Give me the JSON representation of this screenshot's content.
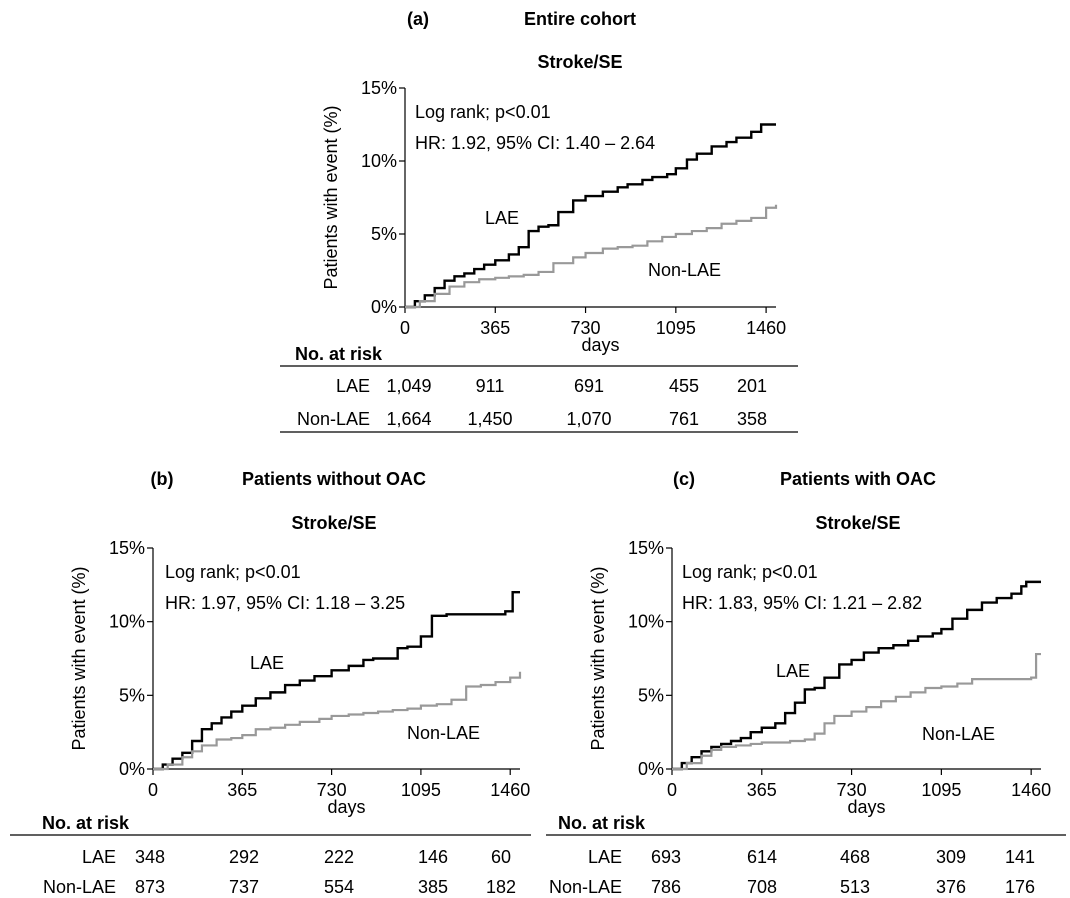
{
  "chart_data": [
    {
      "panel_label": "(a)",
      "group_title": "Entire cohort",
      "type": "line",
      "subtitle": "Stroke/SE",
      "xlabel": "days",
      "ylabel": "Patients with event (%)",
      "xlim": [
        0,
        1500
      ],
      "ylim": [
        0,
        15
      ],
      "xticks": [
        0,
        365,
        730,
        1095,
        1460
      ],
      "yticks": [
        0,
        5,
        10,
        15
      ],
      "ytick_labels": [
        "0%",
        "5%",
        "10%",
        "15%"
      ],
      "grid": false,
      "annotations": [
        "Log rank; p<0.01",
        "HR: 1.92, 95% CI: 1.40 – 2.64"
      ],
      "series": [
        {
          "name": "LAE",
          "color": "#000000",
          "x": [
            0,
            40,
            80,
            120,
            160,
            200,
            240,
            280,
            320,
            365,
            420,
            460,
            500,
            540,
            580,
            620,
            680,
            730,
            800,
            860,
            900,
            960,
            1000,
            1060,
            1095,
            1140,
            1180,
            1240,
            1300,
            1340,
            1400,
            1440,
            1500
          ],
          "y": [
            0,
            0.4,
            0.8,
            1.3,
            1.8,
            2.1,
            2.3,
            2.6,
            2.9,
            3.2,
            3.6,
            4.1,
            5.2,
            5.5,
            5.6,
            6.5,
            7.3,
            7.6,
            7.9,
            8.2,
            8.4,
            8.7,
            8.9,
            9.1,
            9.5,
            10.1,
            10.5,
            11.0,
            11.3,
            11.6,
            12.0,
            12.5,
            12.5
          ]
        },
        {
          "name": "Non-LAE",
          "color": "#999999",
          "x": [
            0,
            60,
            120,
            180,
            240,
            300,
            365,
            420,
            480,
            540,
            600,
            680,
            730,
            800,
            860,
            920,
            980,
            1040,
            1095,
            1160,
            1220,
            1280,
            1340,
            1400,
            1460,
            1500
          ],
          "y": [
            0,
            0.4,
            0.9,
            1.4,
            1.7,
            1.9,
            2.0,
            2.1,
            2.2,
            2.4,
            3.0,
            3.4,
            3.7,
            4.0,
            4.1,
            4.2,
            4.5,
            4.8,
            5.0,
            5.2,
            5.4,
            5.7,
            5.9,
            6.1,
            6.8,
            7.0
          ]
        }
      ],
      "risk_table": {
        "title": "No. at risk",
        "rows": [
          {
            "label": "LAE",
            "values": [
              "1,049",
              "911",
              "691",
              "455",
              "201"
            ]
          },
          {
            "label": "Non-LAE",
            "values": [
              "1,664",
              "1,450",
              "1,070",
              "761",
              "358"
            ]
          }
        ]
      }
    },
    {
      "panel_label": "(b)",
      "group_title": "Patients without OAC",
      "type": "line",
      "subtitle": "Stroke/SE",
      "xlabel": "days",
      "ylabel": "Patients with event (%)",
      "xlim": [
        0,
        1500
      ],
      "ylim": [
        0,
        15
      ],
      "xticks": [
        0,
        365,
        730,
        1095,
        1460
      ],
      "yticks": [
        0,
        5,
        10,
        15
      ],
      "ytick_labels": [
        "0%",
        "5%",
        "10%",
        "15%"
      ],
      "grid": false,
      "annotations": [
        "Log rank; p<0.01",
        "HR: 1.97, 95% CI: 1.18 – 3.25"
      ],
      "series": [
        {
          "name": "LAE",
          "color": "#000000",
          "x": [
            0,
            40,
            80,
            120,
            160,
            200,
            240,
            280,
            320,
            365,
            420,
            480,
            540,
            600,
            660,
            730,
            800,
            860,
            900,
            960,
            1000,
            1040,
            1095,
            1140,
            1200,
            1260,
            1320,
            1380,
            1440,
            1470,
            1500
          ],
          "y": [
            0,
            0.3,
            0.7,
            1.1,
            1.9,
            2.7,
            3.1,
            3.5,
            3.9,
            4.3,
            4.8,
            5.2,
            5.7,
            6.0,
            6.3,
            6.7,
            7.0,
            7.4,
            7.5,
            7.5,
            8.2,
            8.3,
            9.0,
            10.4,
            10.5,
            10.5,
            10.5,
            10.5,
            10.7,
            12.0,
            12.0
          ]
        },
        {
          "name": "Non-LAE",
          "color": "#999999",
          "x": [
            0,
            60,
            120,
            160,
            200,
            260,
            320,
            365,
            420,
            480,
            540,
            600,
            680,
            730,
            800,
            860,
            920,
            980,
            1040,
            1095,
            1160,
            1220,
            1280,
            1340,
            1400,
            1460,
            1500
          ],
          "y": [
            0,
            0.3,
            0.8,
            1.2,
            1.6,
            2.0,
            2.1,
            2.3,
            2.7,
            2.8,
            3.0,
            3.2,
            3.4,
            3.6,
            3.7,
            3.8,
            3.9,
            4.0,
            4.1,
            4.3,
            4.4,
            4.7,
            5.6,
            5.7,
            5.9,
            6.2,
            6.6
          ]
        }
      ],
      "risk_table": {
        "title": "No. at risk",
        "rows": [
          {
            "label": "LAE",
            "values": [
              "348",
              "292",
              "222",
              "146",
              "60"
            ]
          },
          {
            "label": "Non-LAE",
            "values": [
              "873",
              "737",
              "554",
              "385",
              "182"
            ]
          }
        ]
      }
    },
    {
      "panel_label": "(c)",
      "group_title": "Patients with OAC",
      "type": "line",
      "subtitle": "Stroke/SE",
      "xlabel": "days",
      "ylabel": "Patients with event (%)",
      "xlim": [
        0,
        1500
      ],
      "ylim": [
        0,
        15
      ],
      "xticks": [
        0,
        365,
        730,
        1095,
        1460
      ],
      "yticks": [
        0,
        5,
        10,
        15
      ],
      "ytick_labels": [
        "0%",
        "5%",
        "10%",
        "15%"
      ],
      "grid": false,
      "annotations": [
        "Log rank; p<0.01",
        "HR: 1.83, 95% CI: 1.21 – 2.82"
      ],
      "series": [
        {
          "name": "LAE",
          "color": "#000000",
          "x": [
            0,
            40,
            80,
            120,
            160,
            200,
            240,
            280,
            320,
            365,
            420,
            460,
            500,
            540,
            580,
            620,
            680,
            730,
            780,
            840,
            900,
            960,
            1000,
            1060,
            1095,
            1140,
            1200,
            1260,
            1320,
            1380,
            1420,
            1440,
            1500
          ],
          "y": [
            0,
            0.4,
            0.8,
            1.2,
            1.5,
            1.7,
            1.9,
            2.1,
            2.5,
            2.8,
            3.1,
            3.8,
            4.5,
            5.4,
            5.5,
            6.2,
            7.1,
            7.4,
            7.9,
            8.2,
            8.4,
            8.7,
            9.0,
            9.2,
            9.5,
            10.2,
            10.8,
            11.3,
            11.6,
            11.9,
            12.4,
            12.7,
            12.7
          ]
        },
        {
          "name": "Non-LAE",
          "color": "#999999",
          "x": [
            0,
            60,
            120,
            160,
            200,
            260,
            320,
            365,
            420,
            480,
            540,
            580,
            620,
            660,
            730,
            790,
            850,
            910,
            970,
            1030,
            1095,
            1160,
            1220,
            1280,
            1340,
            1400,
            1460,
            1480,
            1500
          ],
          "y": [
            0,
            0.4,
            0.9,
            1.3,
            1.5,
            1.6,
            1.7,
            1.8,
            1.8,
            1.9,
            2.0,
            2.4,
            3.1,
            3.6,
            3.9,
            4.2,
            4.6,
            4.9,
            5.2,
            5.5,
            5.6,
            5.8,
            6.1,
            6.1,
            6.1,
            6.1,
            6.2,
            7.8,
            7.8
          ]
        }
      ],
      "risk_table": {
        "title": "No. at risk",
        "rows": [
          {
            "label": "LAE",
            "values": [
              "693",
              "614",
              "468",
              "309",
              "141"
            ]
          },
          {
            "label": "Non-LAE",
            "values": [
              "786",
              "708",
              "513",
              "376",
              "176"
            ]
          }
        ]
      }
    }
  ],
  "style": {
    "axis_color": "#000000",
    "lae_color": "#000000",
    "nonlae_color": "#999999"
  }
}
